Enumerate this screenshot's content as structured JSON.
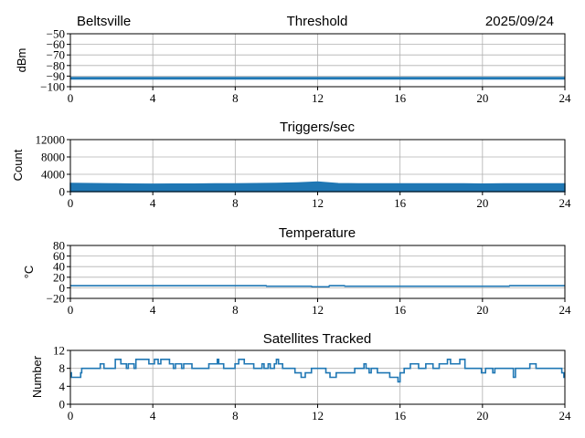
{
  "header": {
    "station": "Beltsville",
    "date": "2025/09/24"
  },
  "colors": {
    "series": "#1f77b4",
    "grid": "#b0b0b0",
    "axis": "#000000"
  },
  "chart_data": [
    {
      "type": "line",
      "title": "Threshold",
      "xlabel": "",
      "ylabel": "dBm",
      "xlim": [
        0,
        24
      ],
      "ylim": [
        -100,
        -50
      ],
      "xticks": [
        0,
        4,
        8,
        12,
        16,
        20,
        24
      ],
      "yticks": [
        -100,
        -90,
        -80,
        -70,
        -60,
        -50
      ],
      "ytick_labels": [
        "−100",
        "−90",
        "−80",
        "−70",
        "−60",
        "−50"
      ],
      "grid": true,
      "x": [
        0,
        24
      ],
      "y": [
        -92,
        -92
      ]
    },
    {
      "type": "area",
      "title": "Triggers/sec",
      "xlabel": "",
      "ylabel": "Count",
      "xlim": [
        0,
        24
      ],
      "ylim": [
        0,
        12000
      ],
      "xticks": [
        0,
        4,
        8,
        12,
        16,
        20,
        24
      ],
      "yticks": [
        0,
        4000,
        8000,
        12000
      ],
      "ytick_labels": [
        "0",
        "4000",
        "8000",
        "12000"
      ],
      "grid": true,
      "x": [
        0,
        1,
        2,
        3,
        4,
        5,
        6,
        7,
        8,
        9,
        10,
        11,
        12,
        13,
        14,
        15,
        16,
        17,
        18,
        19,
        20,
        21,
        22,
        23,
        24
      ],
      "y": [
        1900,
        1850,
        1800,
        1750,
        1700,
        1750,
        1750,
        1800,
        1800,
        1850,
        1900,
        2000,
        2200,
        1850,
        1800,
        1800,
        1800,
        1800,
        1800,
        1800,
        1750,
        1800,
        1800,
        1800,
        1800
      ]
    },
    {
      "type": "line",
      "title": "Temperature",
      "xlabel": "",
      "ylabel": "°C",
      "xlim": [
        0,
        24
      ],
      "ylim": [
        -20,
        80
      ],
      "xticks": [
        0,
        4,
        8,
        12,
        16,
        20,
        24
      ],
      "yticks": [
        -20,
        0,
        20,
        40,
        60,
        80
      ],
      "ytick_labels": [
        "−20",
        "0",
        "20",
        "40",
        "60",
        "80"
      ],
      "grid": true,
      "x": [
        0,
        9.5,
        9.52,
        11.7,
        11.72,
        12.55,
        12.57,
        13.3,
        13.32,
        21.3,
        21.32,
        24
      ],
      "y": [
        4,
        4,
        3,
        3,
        2,
        2,
        4,
        4,
        3,
        3,
        4,
        4
      ]
    },
    {
      "type": "line",
      "step": true,
      "title": "Satellites Tracked",
      "xlabel": "",
      "ylabel": "Number",
      "xlim": [
        0,
        24
      ],
      "ylim": [
        0,
        12
      ],
      "xticks": [
        0,
        4,
        8,
        12,
        16,
        20,
        24
      ],
      "yticks": [
        0,
        4,
        8,
        12
      ],
      "ytick_labels": [
        "0",
        "4",
        "8",
        "12"
      ],
      "grid": true,
      "x": [
        0,
        0.05,
        0.5,
        0.55,
        1.45,
        1.63,
        2.18,
        2.45,
        2.72,
        2.81,
        3.09,
        3.18,
        3.81,
        4.08,
        4.26,
        4.39,
        4.81,
        5.0,
        5.1,
        5.4,
        5.5,
        5.9,
        6.72,
        7.13,
        7.2,
        7.44,
        7.99,
        8.17,
        8.44,
        8.9,
        9.3,
        9.4,
        9.6,
        9.7,
        9.9,
        10.0,
        10.1,
        10.3,
        10.9,
        11.2,
        11.4,
        11.7,
        12.4,
        12.6,
        12.9,
        13.8,
        14.25,
        14.35,
        14.5,
        14.6,
        14.9,
        15.5,
        15.9,
        16.0,
        16.2,
        16.5,
        16.9,
        17.25,
        17.6,
        17.9,
        18.3,
        18.45,
        18.9,
        19.15,
        19.95,
        20.15,
        20.5,
        20.6,
        21.5,
        21.6,
        22.3,
        22.6,
        23.85,
        23.95,
        24
      ],
      "y": [
        7,
        6,
        7,
        8,
        9,
        8,
        10,
        9,
        8,
        9,
        8,
        10,
        9,
        10,
        9,
        10,
        9,
        8,
        9,
        8,
        9,
        8,
        9,
        10,
        9,
        8,
        9,
        10,
        9,
        8,
        9,
        8,
        9,
        8,
        9,
        10,
        9,
        8,
        7,
        6,
        7,
        8,
        7,
        6,
        7,
        8,
        9,
        8,
        7,
        8,
        7,
        6,
        5,
        7,
        8,
        9,
        8,
        9,
        8,
        9,
        10,
        9,
        10,
        8,
        7,
        8,
        7,
        8,
        6,
        8,
        9,
        8,
        7,
        6,
        6
      ]
    }
  ]
}
